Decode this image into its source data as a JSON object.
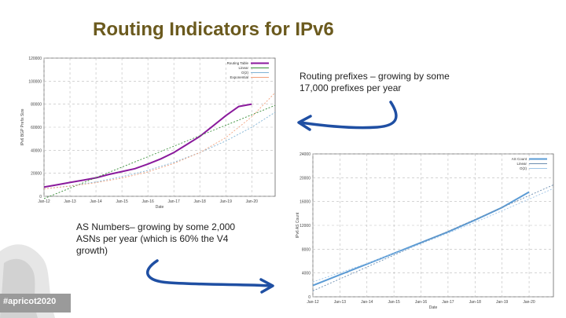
{
  "slide": {
    "title": "Routing Indicators for IPv6",
    "caption_prefixes": [
      "Routing prefixes – growing by some",
      "17,000 prefixes per year"
    ],
    "caption_asn": [
      "AS Numbers– growing by some 2,000",
      "ASNs per year (which is 60% the V4",
      "growth)"
    ],
    "hashtag": "#apricot2020",
    "accent_color": "#6b5a1e",
    "arrow_color": "#1f4fa3"
  },
  "chart_data": [
    {
      "type": "line",
      "ylabel": "IPv6 BGP Prefix Size",
      "xlabel": "Date",
      "y_ticks": [
        "0",
        "20000",
        "40000",
        "60000",
        "80000",
        "100000",
        "120000"
      ],
      "x_ticks": [
        "Jan-12",
        "Jan-13",
        "Jan-14",
        "Jan-15",
        "Jan-16",
        "Jan-17",
        "Jan-18",
        "Jan-19",
        "Jan-20"
      ],
      "ylim": [
        0,
        120000
      ],
      "xlim": [
        2012,
        2020.9
      ],
      "legend": [
        "Routing Table",
        "Linear",
        "O(2)",
        "Exponential"
      ],
      "colors": {
        "Routing Table": "#8a1a9c",
        "Linear": "#3a8f3a",
        "O(2)": "#7fb3d5",
        "Exponential": "#f2a07a"
      },
      "series": [
        {
          "name": "Routing Table",
          "x": [
            2012.0,
            2012.5,
            2013.0,
            2013.5,
            2014.0,
            2014.5,
            2015.0,
            2015.5,
            2016.0,
            2016.5,
            2017.0,
            2017.5,
            2018.0,
            2018.5,
            2019.0,
            2019.5,
            2020.0
          ],
          "y": [
            8000,
            10000,
            12000,
            14000,
            16000,
            19000,
            21500,
            24000,
            28000,
            32500,
            38000,
            45000,
            52000,
            61000,
            70000,
            78000,
            80000
          ]
        },
        {
          "name": "Linear",
          "x": [
            2012.0,
            2020.9
          ],
          "y": [
            -2000,
            79000
          ]
        },
        {
          "name": "O(2)",
          "x": [
            2012.0,
            2013,
            2014,
            2015,
            2016,
            2017,
            2018,
            2019,
            2020,
            2020.9
          ],
          "y": [
            6500,
            9000,
            12500,
            17000,
            22500,
            29500,
            38000,
            48000,
            60000,
            73000
          ]
        },
        {
          "name": "Exponential",
          "x": [
            2012.0,
            2013,
            2014,
            2015,
            2016,
            2017,
            2018,
            2019,
            2020,
            2020.9
          ],
          "y": [
            6500,
            8800,
            11800,
            15800,
            21200,
            28500,
            38000,
            51000,
            69000,
            90000
          ]
        }
      ]
    },
    {
      "type": "line",
      "ylabel": "IPv6 AS Count",
      "xlabel": "Date",
      "y_ticks": [
        "0",
        "4000",
        "8000",
        "12000",
        "16000",
        "20000",
        "24000"
      ],
      "x_ticks": [
        "Jan-12",
        "Jan-13",
        "Jan-14",
        "Jan-15",
        "Jan-16",
        "Jan-17",
        "Jan-18",
        "Jan-19",
        "Jan-20"
      ],
      "ylim": [
        0,
        24000
      ],
      "xlim": [
        2012,
        2020.9
      ],
      "legend": [
        "AS Count",
        "Linear",
        "O(2)"
      ],
      "colors": {
        "AS Count": "#5b9bd5",
        "Linear": "#6a8caf",
        "O(2)": "#9fc5e8"
      },
      "series": [
        {
          "name": "AS Count",
          "x": [
            2012.0,
            2013,
            2014,
            2015,
            2016,
            2017,
            2018,
            2019,
            2020
          ],
          "y": [
            1900,
            3700,
            5500,
            7300,
            9100,
            10900,
            12900,
            15000,
            17600
          ]
        },
        {
          "name": "Linear",
          "x": [
            2012.0,
            2020.9
          ],
          "y": [
            1000,
            18800
          ]
        },
        {
          "name": "O(2)",
          "x": [
            2012.0,
            2014,
            2016,
            2018,
            2020,
            2020.9
          ],
          "y": [
            2500,
            5600,
            8900,
            12500,
            16400,
            18200
          ]
        }
      ]
    }
  ]
}
